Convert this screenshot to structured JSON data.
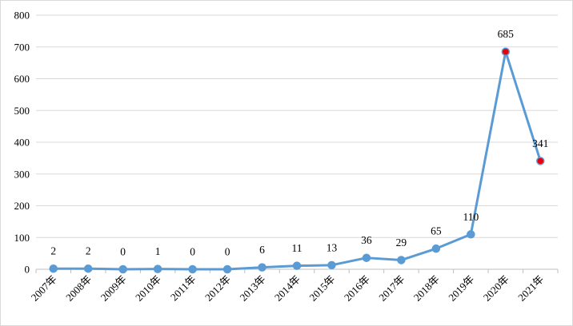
{
  "chart_data": {
    "type": "line",
    "categories": [
      "2007年",
      "2008年",
      "2009年",
      "2010年",
      "2011年",
      "2012年",
      "2013年",
      "2014年",
      "2015年",
      "2016年",
      "2017年",
      "2018年",
      "2019年",
      "2020年",
      "2021年"
    ],
    "series": [
      {
        "values": [
          2,
          2,
          0,
          1,
          0,
          0,
          6,
          11,
          13,
          36,
          29,
          65,
          110,
          685,
          341
        ]
      }
    ],
    "ylim": [
      0,
      800
    ],
    "yticks": [
      0,
      100,
      200,
      300,
      400,
      500,
      600,
      700,
      800
    ],
    "grid": true,
    "legend": false,
    "data_labels": true,
    "line_color": "#5B9BD5",
    "marker_color": "#5B9BD5",
    "highlight_color": "#E8000B",
    "highlight_categories": [
      "2020年",
      "2021年"
    ]
  }
}
